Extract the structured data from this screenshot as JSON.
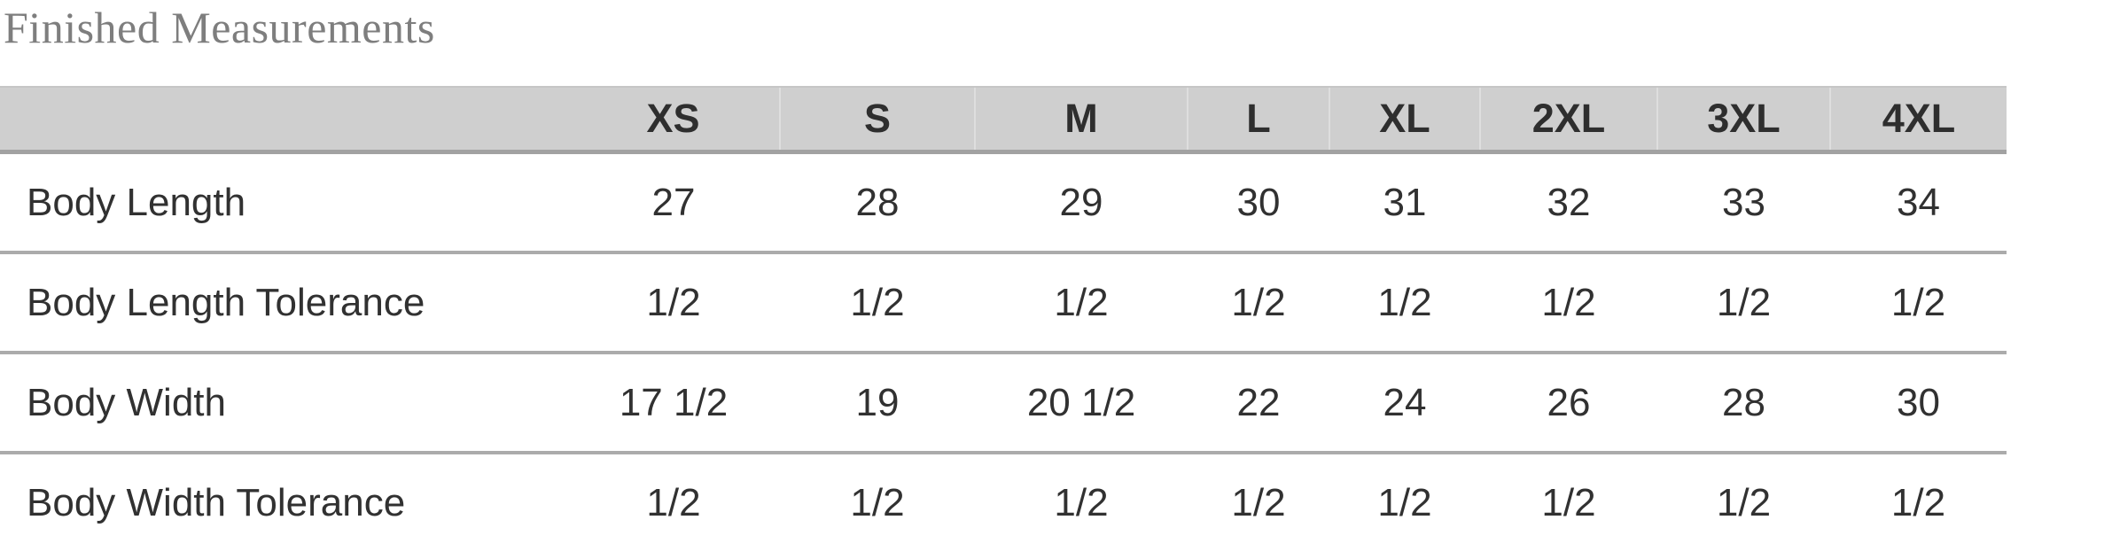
{
  "title": "Finished Measurements",
  "colors": {
    "title_text": "#7e7e7e",
    "header_background": "#cfcfcf",
    "header_text": "#2e2e2e",
    "cell_text": "#313131",
    "row_divider": "#ababab",
    "header_bottom_border": "#a2a2a2",
    "page_background": "#ffffff"
  },
  "table": {
    "columns": [
      "",
      "XS",
      "S",
      "M",
      "L",
      "XL",
      "2XL",
      "3XL",
      "4XL"
    ],
    "rows": [
      {
        "label": "Body Length",
        "values": [
          "27",
          "28",
          "29",
          "30",
          "31",
          "32",
          "33",
          "34"
        ]
      },
      {
        "label": "Body Length Tolerance",
        "values": [
          "1/2",
          "1/2",
          "1/2",
          "1/2",
          "1/2",
          "1/2",
          "1/2",
          "1/2"
        ]
      },
      {
        "label": "Body Width",
        "values": [
          "17 1/2",
          "19",
          "20 1/2",
          "22",
          "24",
          "26",
          "28",
          "30"
        ]
      },
      {
        "label": "Body Width Tolerance",
        "values": [
          "1/2",
          "1/2",
          "1/2",
          "1/2",
          "1/2",
          "1/2",
          "1/2",
          "1/2"
        ]
      }
    ]
  }
}
